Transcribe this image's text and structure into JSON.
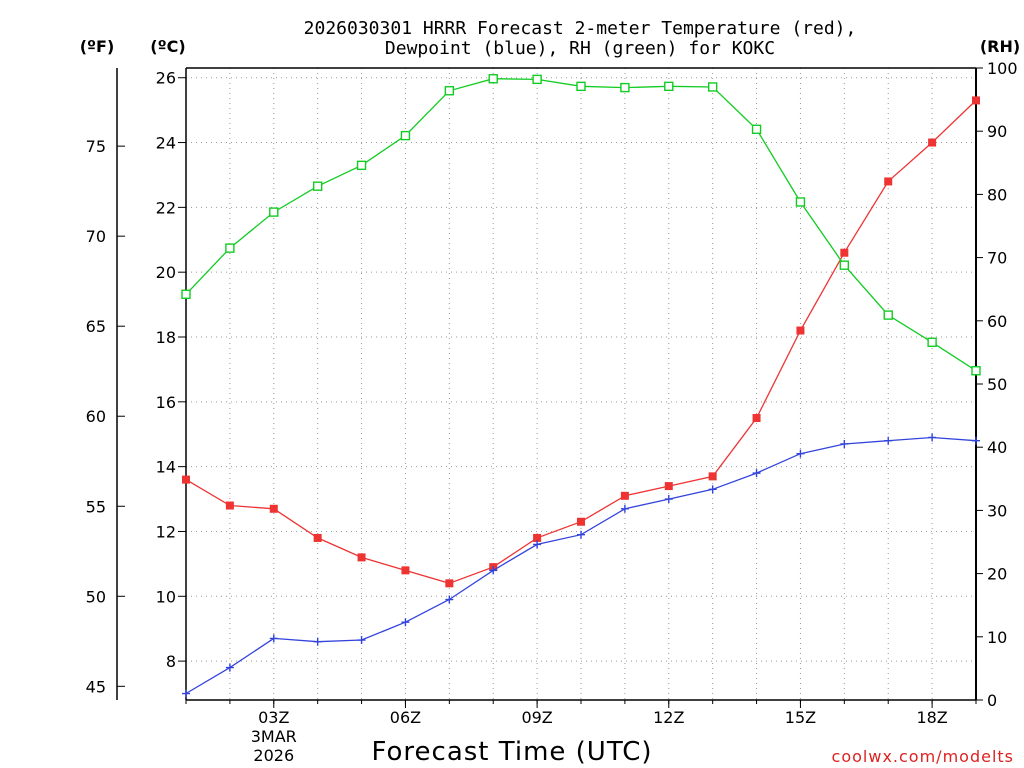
{
  "chart_data": {
    "type": "line",
    "title_line1": "2026030301 HRRR Forecast 2-meter Temperature (red),",
    "title_line2": "Dewpoint (blue), RH (green) for KOKC",
    "xlabel": "Forecast Time (UTC)",
    "credit": "coolwx.com/modelts",
    "unit_f": "(ºF)",
    "unit_c": "(ºC)",
    "unit_rh": "(RH)",
    "x_hours": [
      1,
      2,
      3,
      4,
      5,
      6,
      7,
      8,
      9,
      10,
      11,
      12,
      13,
      14,
      15,
      16,
      17,
      18,
      19
    ],
    "x_ticks": [
      {
        "hour": 3,
        "label": "03Z"
      },
      {
        "hour": 6,
        "label": "06Z"
      },
      {
        "hour": 9,
        "label": "09Z"
      },
      {
        "hour": 12,
        "label": "12Z"
      },
      {
        "hour": 15,
        "label": "15Z"
      },
      {
        "hour": 18,
        "label": "18Z"
      }
    ],
    "date_label_line1": "3MAR",
    "date_label_line2": "2026",
    "xlim": [
      1,
      19
    ],
    "ylim_c": [
      6.8,
      26.3
    ],
    "ylim_rh": [
      0,
      100
    ],
    "y_ticks_c": [
      "8",
      "10",
      "12",
      "14",
      "16",
      "18",
      "20",
      "22",
      "24",
      "26"
    ],
    "y_ticks_f": [
      "45",
      "50",
      "55",
      "60",
      "65",
      "70",
      "75"
    ],
    "y_ticks_rh": [
      "0",
      "10",
      "20",
      "30",
      "40",
      "50",
      "60",
      "70",
      "80",
      "90",
      "100"
    ],
    "series": [
      {
        "name": "Temperature",
        "unit": "C",
        "color": "#ee3333",
        "marker": "filled-square",
        "values": [
          13.6,
          12.8,
          12.7,
          11.8,
          11.2,
          10.8,
          10.4,
          10.9,
          11.8,
          12.3,
          13.1,
          13.4,
          13.7,
          15.5,
          18.2,
          20.6,
          22.8,
          24.0,
          25.3
        ]
      },
      {
        "name": "Dewpoint",
        "unit": "C",
        "color": "#3344dd",
        "marker": "plus",
        "values": [
          7.0,
          7.8,
          8.7,
          8.6,
          8.65,
          9.2,
          9.9,
          10.8,
          11.6,
          11.9,
          12.7,
          13.0,
          13.3,
          13.8,
          14.4,
          14.7,
          14.8,
          14.9,
          14.8
        ]
      },
      {
        "name": "RH",
        "unit": "%",
        "color": "#11cc22",
        "marker": "open-square",
        "values": [
          64.2,
          71.5,
          77.2,
          81.3,
          84.6,
          89.3,
          96.4,
          98.3,
          98.2,
          97.1,
          96.9,
          97.1,
          97.0,
          90.3,
          78.8,
          68.8,
          60.9,
          56.6,
          52.1
        ]
      }
    ]
  }
}
